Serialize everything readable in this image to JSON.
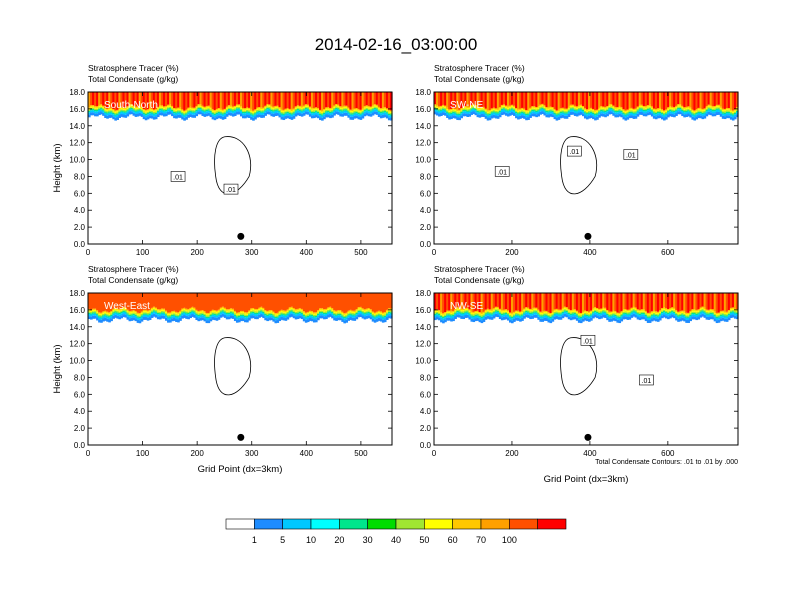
{
  "figure": {
    "title": "2014-02-16_03:00:00",
    "contour_info": "Total Condensate Contours: .01 to .01 by .000"
  },
  "colorbar": {
    "colors": [
      "#ffffff",
      "#1e8cff",
      "#00c8ff",
      "#00ffff",
      "#00e68c",
      "#00dc00",
      "#a0e632",
      "#ffff00",
      "#ffc800",
      "#ffa000",
      "#ff5000",
      "#ff0000"
    ],
    "labels": [
      "1",
      "5",
      "10",
      "20",
      "30",
      "40",
      "50",
      "60",
      "70",
      "100"
    ]
  },
  "chart_data": [
    {
      "type": "heatmap",
      "panel": "South-North",
      "field_labels": [
        "Stratosphere Tracer   (%)",
        "Total Condensate   (g/kg)"
      ],
      "ylabel": "Height (km)",
      "xlabel": "",
      "xlim": [
        0,
        557
      ],
      "ylim": [
        0,
        18
      ],
      "xticks": [
        0,
        100,
        200,
        300,
        400,
        500
      ],
      "yticks": [
        0.0,
        2.0,
        4.0,
        6.0,
        8.0,
        10.0,
        12.0,
        14.0,
        16.0,
        18.0
      ],
      "tropopause_km": 15.6,
      "marker_x": 280,
      "contour_labels": [
        {
          "text": ".01",
          "x": 165,
          "y": 8.0
        },
        {
          "text": ".01",
          "x": 262,
          "y": 6.5
        }
      ]
    },
    {
      "type": "heatmap",
      "panel": "SW-NE",
      "field_labels": [
        "Stratosphere Tracer   (%)",
        "Total Condensate   (g/kg)"
      ],
      "ylabel": "",
      "xlabel": "",
      "xlim": [
        0,
        780
      ],
      "ylim": [
        0,
        18
      ],
      "xticks": [
        0,
        200,
        400,
        600
      ],
      "yticks": [
        0.0,
        2.0,
        4.0,
        6.0,
        8.0,
        10.0,
        12.0,
        14.0,
        16.0,
        18.0
      ],
      "tropopause_km": 15.6,
      "marker_x": 395,
      "contour_labels": [
        {
          "text": ".01",
          "x": 175,
          "y": 8.6
        },
        {
          "text": ".01",
          "x": 360,
          "y": 11.0
        },
        {
          "text": ".01",
          "x": 505,
          "y": 10.6
        }
      ]
    },
    {
      "type": "heatmap",
      "panel": "West-East",
      "field_labels": [
        "Stratosphere Tracer   (%)",
        "Total Condensate   (g/kg)"
      ],
      "ylabel": "Height (km)",
      "xlabel": "Grid Point (dx=3km)",
      "xlim": [
        0,
        557
      ],
      "ylim": [
        0,
        18
      ],
      "xticks": [
        0,
        100,
        200,
        300,
        400,
        500
      ],
      "yticks": [
        0.0,
        2.0,
        4.0,
        6.0,
        8.0,
        10.0,
        12.0,
        14.0,
        16.0,
        18.0
      ],
      "tropopause_km": 15.4,
      "marker_x": 280,
      "contour_labels": []
    },
    {
      "type": "heatmap",
      "panel": "NW-SE",
      "field_labels": [
        "Stratosphere Tracer   (%)",
        "Total Condensate   (g/kg)"
      ],
      "ylabel": "",
      "xlabel": "Grid Point (dx=3km)",
      "xlim": [
        0,
        780
      ],
      "ylim": [
        0,
        18
      ],
      "xticks": [
        0,
        200,
        400,
        600
      ],
      "yticks": [
        0.0,
        2.0,
        4.0,
        6.0,
        8.0,
        10.0,
        12.0,
        14.0,
        16.0,
        18.0
      ],
      "tropopause_km": 15.4,
      "marker_x": 395,
      "contour_labels": [
        {
          "text": ".01",
          "x": 395,
          "y": 12.4
        },
        {
          "text": ".01",
          "x": 545,
          "y": 7.7
        }
      ]
    }
  ]
}
